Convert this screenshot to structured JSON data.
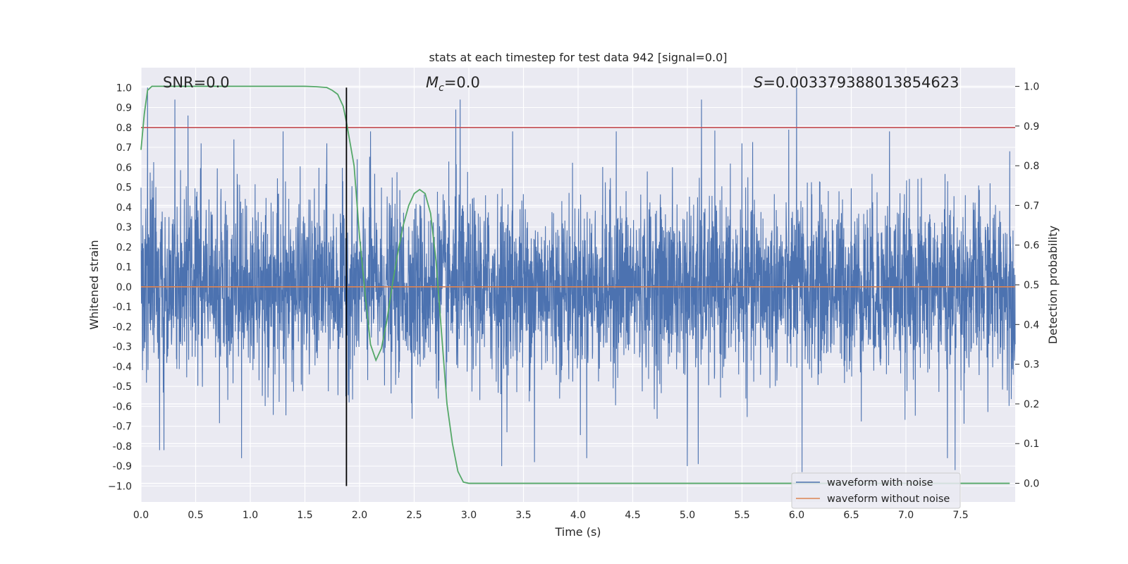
{
  "chart_data": {
    "type": "line",
    "title": "stats at each timestep for test data 942 [signal=0.0]",
    "xlabel": "Time (s)",
    "ylabel": "Whitened strain",
    "ylabel_right": "Detection probability",
    "xlim": [
      0,
      8
    ],
    "ylim": [
      -1.08,
      1.1
    ],
    "ylim_right": [
      -0.047,
      1.047
    ],
    "x_ticks": [
      0.0,
      0.5,
      1.0,
      1.5,
      2.0,
      2.5,
      3.0,
      3.5,
      4.0,
      4.5,
      5.0,
      5.5,
      6.0,
      6.5,
      7.0,
      7.5
    ],
    "x_tick_labels": [
      "0.0",
      "0.5",
      "1.0",
      "1.5",
      "2.0",
      "2.5",
      "3.0",
      "3.5",
      "4.0",
      "4.5",
      "5.0",
      "5.5",
      "6.0",
      "6.5",
      "7.0",
      "7.5"
    ],
    "y_ticks": [
      1.0,
      0.9,
      0.8,
      0.7,
      0.6,
      0.5,
      0.4,
      0.3,
      0.2,
      0.1,
      0.0,
      -0.1,
      -0.2,
      -0.3,
      -0.4,
      -0.5,
      -0.6,
      -0.7,
      -0.8,
      -0.9,
      -1.0
    ],
    "y_tick_labels": [
      "1.0",
      "0.9",
      "0.8",
      "0.7",
      "0.6",
      "0.5",
      "0.4",
      "0.3",
      "0.2",
      "0.1",
      "0.0",
      "-0.1",
      "-0.2",
      "-0.3",
      "-0.4",
      "-0.5",
      "-0.6",
      "-0.7",
      "-0.8",
      "-0.9",
      "−1.0"
    ],
    "y_right_ticks": [
      1.0,
      0.9,
      0.8,
      0.7,
      0.6,
      0.5,
      0.4,
      0.3,
      0.2,
      0.1,
      0.0
    ],
    "y_right_tick_labels": [
      "1.0",
      "0.9",
      "0.8",
      "0.7",
      "0.6",
      "0.5",
      "0.4",
      "0.3",
      "0.2",
      "0.1",
      "0.0"
    ],
    "series": [
      {
        "name": "waveform with noise",
        "color": "#4c72b0",
        "axis": "left",
        "kind": "noise",
        "typical_amplitude": 0.4,
        "peak_samples": [
          {
            "x": 0.06,
            "y": 1.0
          },
          {
            "x": 0.31,
            "y": 0.94
          },
          {
            "x": 0.43,
            "y": 0.86
          },
          {
            "x": 0.17,
            "y": -0.82
          },
          {
            "x": 0.21,
            "y": -0.82
          },
          {
            "x": 0.92,
            "y": -0.86
          },
          {
            "x": 2.88,
            "y": 0.89
          },
          {
            "x": 2.92,
            "y": 0.94
          },
          {
            "x": 5.13,
            "y": 0.94
          },
          {
            "x": 6.0,
            "y": 1.0
          },
          {
            "x": 6.05,
            "y": -0.93
          },
          {
            "x": 7.38,
            "y": -0.86
          },
          {
            "x": 4.08,
            "y": -0.86
          },
          {
            "x": 3.6,
            "y": -0.88
          },
          {
            "x": 3.3,
            "y": -0.9
          },
          {
            "x": 5.0,
            "y": -0.9
          },
          {
            "x": 5.1,
            "y": -0.89
          },
          {
            "x": 7.45,
            "y": -0.92
          },
          {
            "x": 0.55,
            "y": 0.72
          },
          {
            "x": 0.85,
            "y": 0.74
          },
          {
            "x": 1.3,
            "y": 0.78
          },
          {
            "x": 1.7,
            "y": 0.72
          },
          {
            "x": 2.1,
            "y": 0.78
          },
          {
            "x": 3.4,
            "y": 0.78
          },
          {
            "x": 4.35,
            "y": 0.78
          },
          {
            "x": 5.5,
            "y": 0.72
          },
          {
            "x": 6.85,
            "y": 0.78
          },
          {
            "x": 7.95,
            "y": 0.68
          }
        ]
      },
      {
        "name": "waveform without noise",
        "color": "#dd8452",
        "axis": "left",
        "x": [
          0,
          8
        ],
        "y": [
          0.0,
          0.0
        ]
      },
      {
        "name": "detection probability",
        "color": "#55a868",
        "axis": "right",
        "x": [
          0.0,
          0.03,
          0.06,
          0.1,
          0.2,
          0.5,
          1.0,
          1.5,
          1.6,
          1.7,
          1.75,
          1.8,
          1.85,
          1.88,
          1.95,
          2.0,
          2.05,
          2.1,
          2.15,
          2.2,
          2.25,
          2.3,
          2.35,
          2.4,
          2.45,
          2.5,
          2.55,
          2.6,
          2.65,
          2.7,
          2.75,
          2.8,
          2.85,
          2.9,
          2.95,
          3.0,
          3.2,
          3.4,
          3.6,
          4.0,
          4.5,
          5.0,
          6.0,
          7.0,
          7.95
        ],
        "y": [
          0.84,
          0.93,
          0.99,
          1.0,
          1.0,
          1.0,
          1.0,
          1.0,
          0.999,
          0.997,
          0.99,
          0.98,
          0.95,
          0.91,
          0.8,
          0.62,
          0.48,
          0.35,
          0.31,
          0.34,
          0.41,
          0.5,
          0.58,
          0.65,
          0.7,
          0.73,
          0.74,
          0.73,
          0.68,
          0.56,
          0.38,
          0.2,
          0.1,
          0.03,
          0.003,
          0.0,
          0.0,
          0.0,
          0.0,
          0.0,
          0.0,
          0.0,
          0.0,
          0.0,
          0.0
        ]
      }
    ],
    "hlines": [
      {
        "y": 0.8,
        "color": "#c44e52",
        "axis": "left"
      }
    ],
    "vlines": [
      {
        "x": 1.88,
        "color": "#000000",
        "ymin": -1.0,
        "ymax": 1.0
      }
    ],
    "annotations": {
      "snr": "SNR=0.0",
      "mc_symbol": "M",
      "mc_sub": "c",
      "mc_value": "=0.0",
      "s_symbol": "S",
      "s_value": "=0.003379388013854623"
    },
    "legend": {
      "position": "lower right",
      "entries": [
        "waveform with noise",
        "waveform without noise"
      ]
    },
    "colors": {
      "plot_bg": "#eaeaf2",
      "grid": "#ffffff",
      "noise": "#4c72b0",
      "clean": "#dd8452",
      "prob": "#55a868",
      "threshold": "#c44e52"
    }
  }
}
